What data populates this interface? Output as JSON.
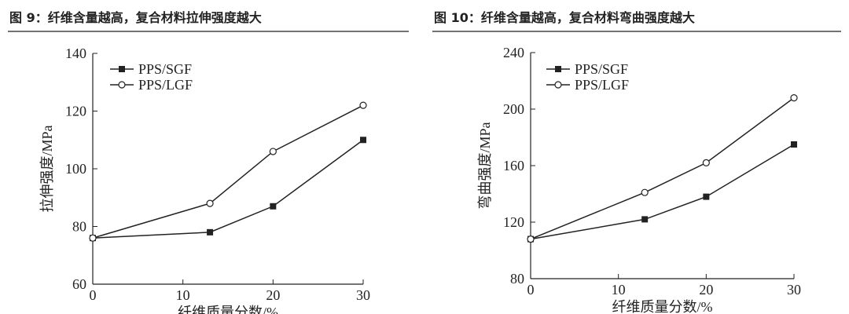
{
  "chart_data": [
    {
      "type": "line",
      "title": "图 9：纤维含量越高，复合材料拉伸强度越大",
      "x_label": "纤维质量分数/%",
      "y_label": "拉伸强度/MPa",
      "x": [
        0,
        13,
        20,
        30
      ],
      "xlim": [
        0,
        30
      ],
      "xticks": [
        0,
        10,
        20,
        30
      ],
      "ylim": [
        60,
        140
      ],
      "yticks": [
        60,
        80,
        100,
        120,
        140
      ],
      "series": [
        {
          "name": "PPS/SGF",
          "color": "#222222",
          "marker": "square",
          "values": [
            76,
            78,
            87,
            110
          ]
        },
        {
          "name": "PPS/LGF",
          "color": "#222222",
          "marker": "circle",
          "values": [
            76,
            88,
            106,
            122
          ]
        }
      ]
    },
    {
      "type": "line",
      "title": "图 10：纤维含量越高，复合材料弯曲强度越大",
      "x_label": "纤维质量分数/%",
      "y_label": "弯曲强度/MPa",
      "x": [
        0,
        13,
        20,
        30
      ],
      "xlim": [
        0,
        30
      ],
      "xticks": [
        0,
        10,
        20,
        30
      ],
      "ylim": [
        80,
        240
      ],
      "yticks": [
        80,
        120,
        160,
        200,
        240
      ],
      "series": [
        {
          "name": "PPS/SGF",
          "color": "#222222",
          "marker": "square",
          "values": [
            108,
            122,
            138,
            175
          ]
        },
        {
          "name": "PPS/LGF",
          "color": "#222222",
          "marker": "circle",
          "values": [
            108,
            141,
            162,
            208
          ]
        }
      ]
    }
  ]
}
